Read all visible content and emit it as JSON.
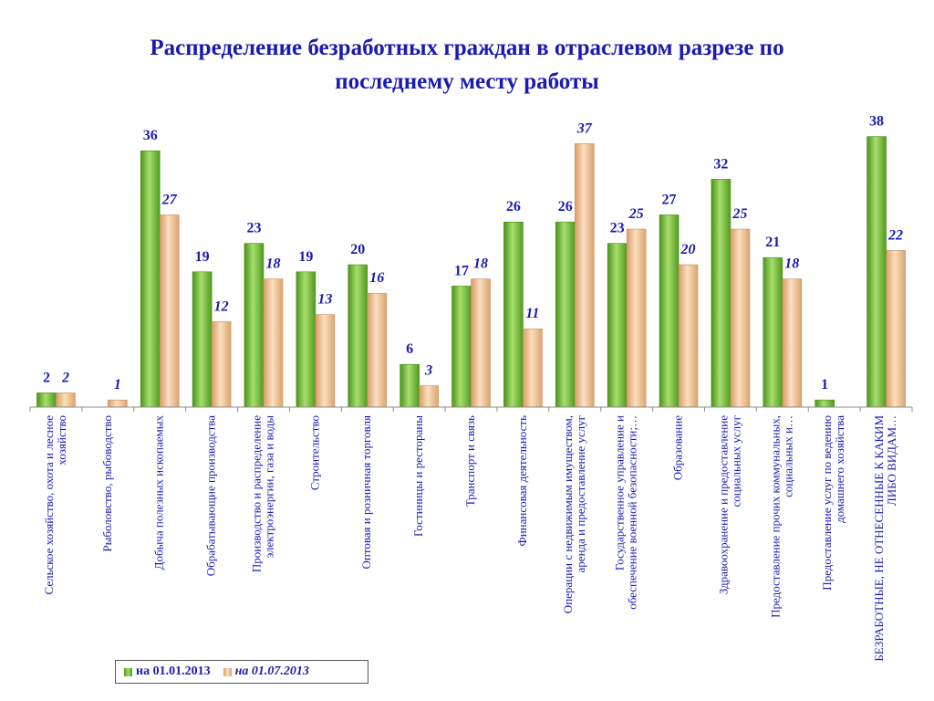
{
  "chart_data": {
    "type": "bar",
    "title": "Распределение безработных граждан в отраслевом разрезе по\nпоследнему месту работы",
    "categories": [
      "Сельское хозяйство, охота и лесное хозяйство",
      "Рыболовство, рыбоводство",
      "Добыча полезных ископаемых",
      "Обрабатывающие производства",
      "Производство и распределение электроэнергии, газа и воды",
      "Строительство",
      "Оптовая и розничная торговля",
      "Гостиницы и рестораны",
      "Транспорт и связь",
      "Финансовая деятельность",
      "Операции с недвижимым имуществом, аренда и предоставление услуг",
      "Государственное управление и обеспечение военной безопасности;…",
      "Образование",
      "Здравоохранение и предоставление социальных услуг",
      "Предоставление прочих коммунальных, социальных и…",
      "Предоставление услуг по ведению домашнего хозяйства",
      "БЕЗРАБОТНЫЕ, НЕ ОТНЕСЕННЫЕ К КАКИМ ЛИБО ВИДАМ…"
    ],
    "series": [
      {
        "name": "на 01.01.2013",
        "color": "#6cbf36",
        "values": [
          2,
          0,
          36,
          19,
          23,
          19,
          20,
          6,
          17,
          26,
          26,
          23,
          27,
          32,
          21,
          1,
          38
        ]
      },
      {
        "name": "на 01.07.2013",
        "color": "#f5c79a",
        "values": [
          2,
          1,
          27,
          12,
          18,
          13,
          16,
          3,
          18,
          11,
          37,
          25,
          20,
          25,
          18,
          0,
          22
        ]
      }
    ],
    "data_labels_a": [
      "2",
      "",
      "36",
      "19",
      "23",
      "19",
      "20",
      "6",
      "17",
      "26",
      "26",
      "23",
      "27",
      "32",
      "21",
      "1",
      "38"
    ],
    "data_labels_b": [
      "2",
      "1",
      "27",
      "12",
      "18",
      "13",
      "16",
      "3",
      "18",
      "11",
      "37",
      "25",
      "20",
      "25",
      "18",
      "",
      "22"
    ],
    "ylim": [
      0,
      40
    ],
    "legend_position": "bottom-left",
    "grid": false,
    "label_color": "#1a1ab3",
    "axis_color": "#8c8c8c"
  }
}
